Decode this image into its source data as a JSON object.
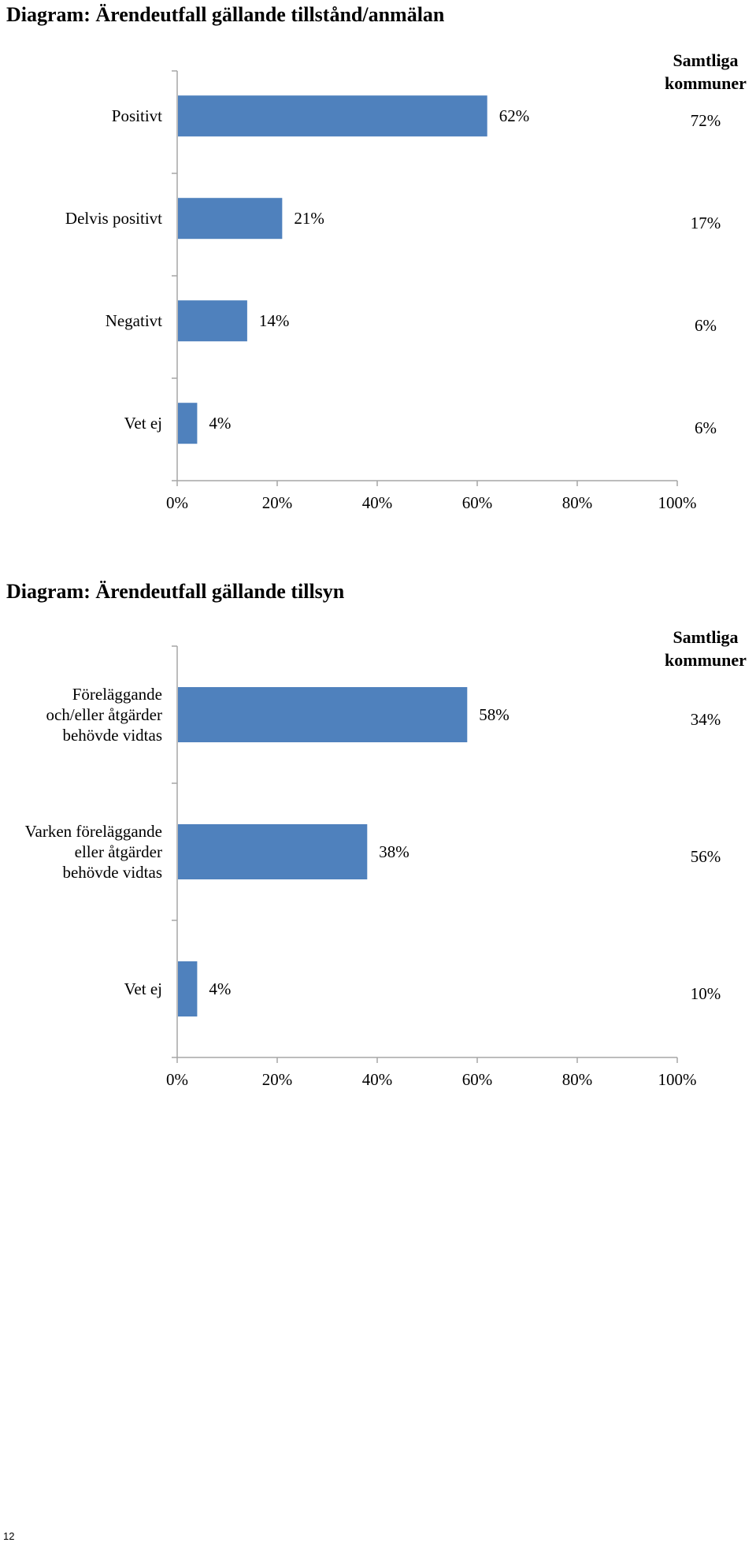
{
  "chart_data": [
    {
      "type": "bar",
      "orientation": "horizontal",
      "title": "Diagram: Ärendeutfall gällande tillstånd/anmälan",
      "categories": [
        "Positivt",
        "Delvis positivt",
        "Negativt",
        "Vet ej"
      ],
      "values": [
        62,
        21,
        14,
        4
      ],
      "value_labels": [
        "62%",
        "21%",
        "14%",
        "4%"
      ],
      "comparison_header": [
        "Samtliga",
        "kommuner"
      ],
      "comparison_labels": [
        "72%",
        "17%",
        "6%",
        "6%"
      ],
      "comparison_values": [
        72,
        17,
        6,
        6
      ],
      "xlim": [
        0,
        100
      ],
      "x_ticks": [
        "0%",
        "20%",
        "40%",
        "60%",
        "80%",
        "100%"
      ],
      "bar_color": "#4f81bd",
      "axis_color": "#a6a6a6",
      "grid": false
    },
    {
      "type": "bar",
      "orientation": "horizontal",
      "title": "Diagram: Ärendeutfall gällande tillsyn",
      "categories": [
        [
          "Föreläggande",
          "och/eller åtgärder",
          "behövde vidtas"
        ],
        [
          "Varken föreläggande",
          "eller åtgärder",
          "behövde vidtas"
        ],
        [
          "Vet ej"
        ]
      ],
      "values": [
        58,
        38,
        4
      ],
      "value_labels": [
        "58%",
        "38%",
        "4%"
      ],
      "comparison_header": [
        "Samtliga",
        "kommuner"
      ],
      "comparison_labels": [
        "34%",
        "56%",
        "10%"
      ],
      "comparison_values": [
        34,
        56,
        10
      ],
      "xlim": [
        0,
        100
      ],
      "x_ticks": [
        "0%",
        "20%",
        "40%",
        "60%",
        "80%",
        "100%"
      ],
      "bar_color": "#4f81bd",
      "axis_color": "#a6a6a6",
      "grid": false
    }
  ],
  "page": {
    "number": "12"
  }
}
